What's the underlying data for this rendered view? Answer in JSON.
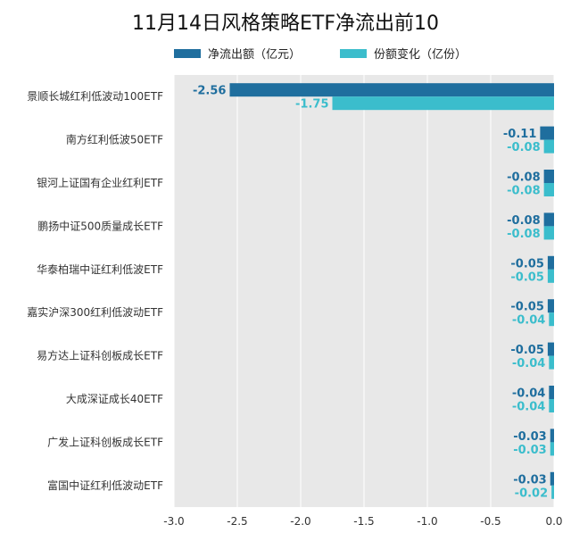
{
  "chart_data": {
    "type": "bar",
    "orientation": "horizontal",
    "title": "11月14日风格策略ETF净流出前10",
    "categories": [
      "景顺长城红利低波动100ETF",
      "南方红利低波50ETF",
      "银河上证国有企业红利ETF",
      "鹏扬中证500质量成长ETF",
      "华泰柏瑞中证红利低波ETF",
      "嘉实沪深300红利低波动ETF",
      "易方达上证科创板成长ETF",
      "大成深证成长40ETF",
      "广发上证科创板成长ETF",
      "富国中证红利低波动ETF"
    ],
    "series": [
      {
        "name": "净流出额（亿元）",
        "color": "#1f6e9e",
        "values": [
          -2.56,
          -0.11,
          -0.08,
          -0.08,
          -0.05,
          -0.05,
          -0.05,
          -0.04,
          -0.03,
          -0.03
        ]
      },
      {
        "name": "份额变化（亿份）",
        "color": "#3bbdcc",
        "values": [
          -1.75,
          -0.08,
          -0.08,
          -0.08,
          -0.05,
          -0.04,
          -0.04,
          -0.04,
          -0.03,
          -0.02
        ]
      }
    ],
    "data_labels": [
      [
        "-2.56",
        "-0.11",
        "-0.08",
        "-0.08",
        "-0.05",
        "-0.05",
        "-0.05",
        "-0.04",
        "-0.03",
        "-0.03"
      ],
      [
        "-1.75",
        "-0.08",
        "-0.08",
        "-0.08",
        "-0.05",
        "-0.04",
        "-0.04",
        "-0.04",
        "-0.03",
        "-0.02"
      ]
    ],
    "xlim": [
      -3.0,
      0.0
    ],
    "xticks": [
      -3.0,
      -2.5,
      -2.0,
      -1.5,
      -1.0,
      -0.5,
      0.0
    ],
    "xtick_labels": [
      "-3.0",
      "-2.5",
      "-2.0",
      "-1.5",
      "-1.0",
      "-0.5",
      "0.0"
    ],
    "grid": true,
    "legend_position": "top",
    "plot_background": "#e8e8e8"
  }
}
